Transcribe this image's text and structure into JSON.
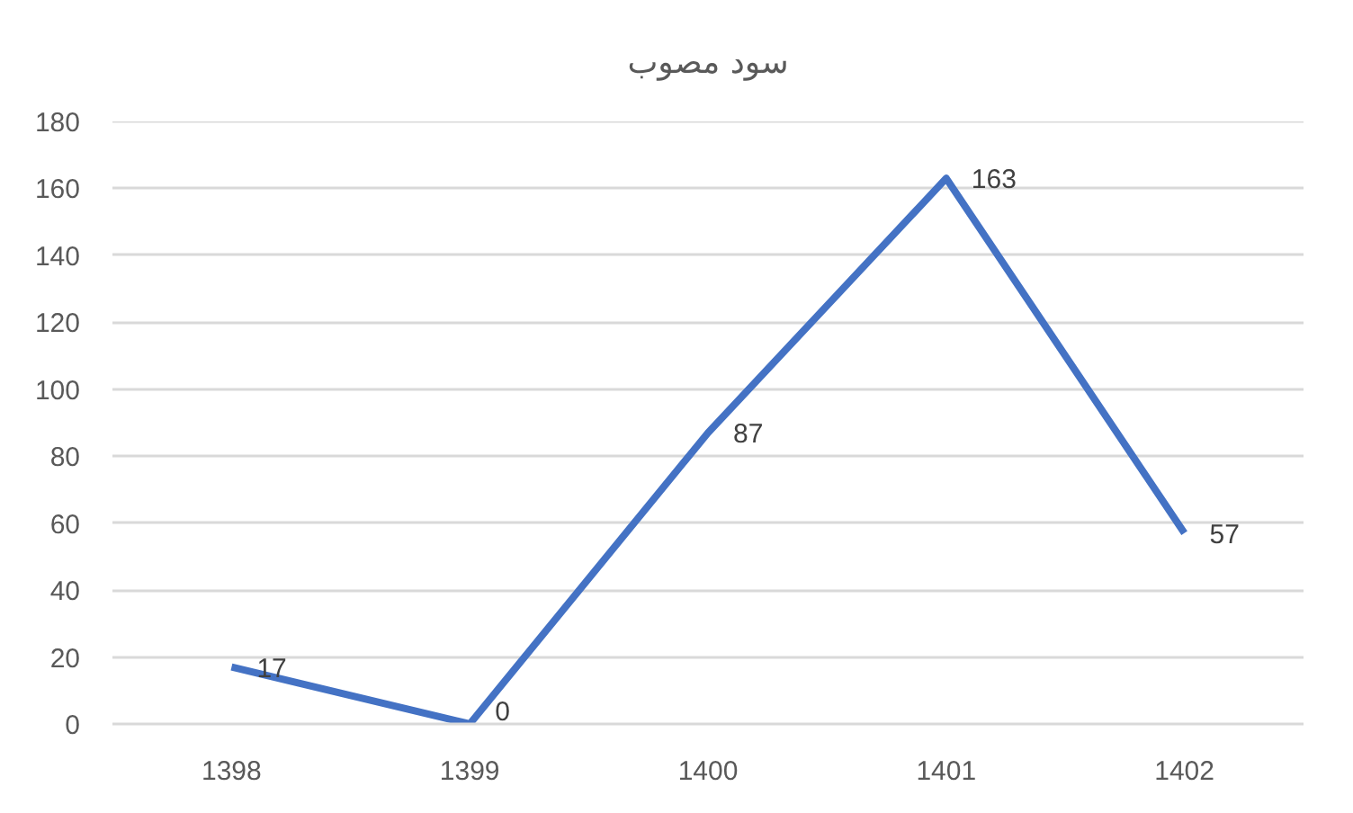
{
  "chart_data": {
    "type": "line",
    "title": "سود مصوب",
    "categories": [
      "1398",
      "1399",
      "1400",
      "1401",
      "1402"
    ],
    "values": [
      17,
      0,
      87,
      163,
      57
    ],
    "color": "#4472c4",
    "ylim": [
      0,
      180
    ],
    "yticks": [
      0,
      20,
      40,
      60,
      80,
      100,
      120,
      140,
      160,
      180
    ],
    "grid": "y",
    "data_labels": true,
    "line_style": "solid"
  }
}
